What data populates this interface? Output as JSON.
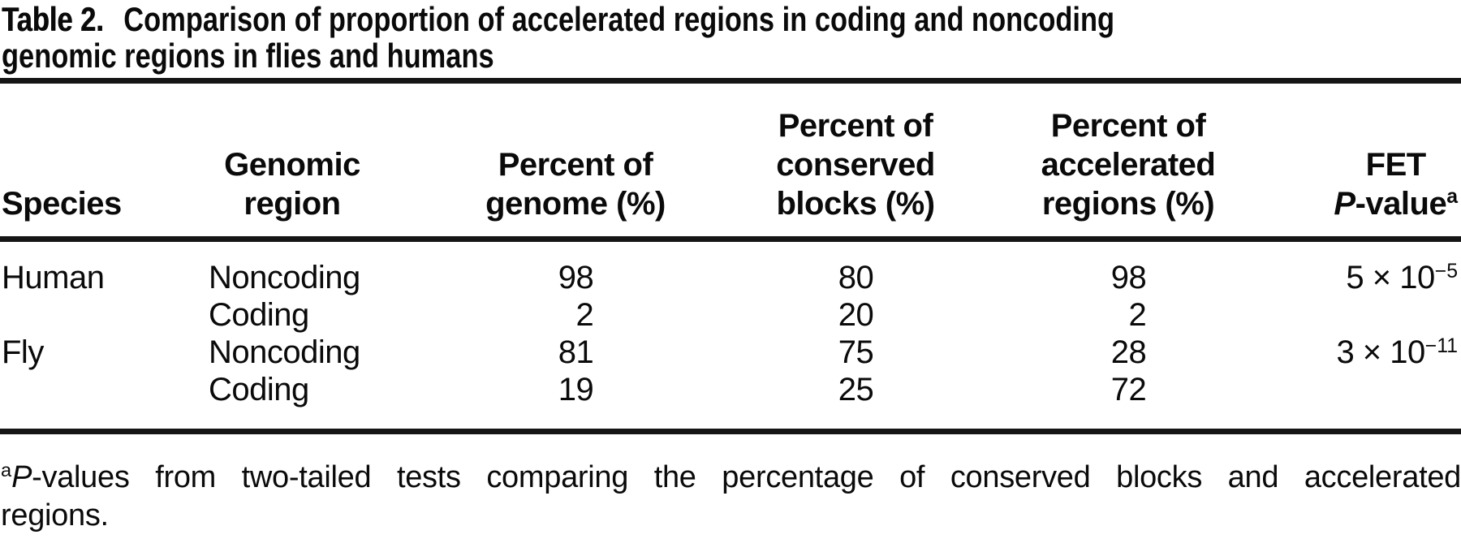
{
  "title": {
    "label": "Table 2.",
    "line1": "Comparison of proportion of accelerated regions in coding and noncoding",
    "line2": "genomic regions in flies and humans"
  },
  "headers": {
    "species": "Species",
    "genomic_region": "Genomic\nregion",
    "percent_genome": "Percent of\ngenome (%)",
    "percent_conserved": "Percent of\nconserved\nblocks (%)",
    "percent_accelerated": "Percent of\naccelerated\nregions (%)",
    "fet_line1": "FET",
    "fet_p": "P",
    "fet_rest": "-value",
    "fet_sup": "a"
  },
  "table": {
    "rows": [
      {
        "species": "Human",
        "region": "Noncoding",
        "genome": "98",
        "conserved": "80",
        "accelerated": "98",
        "fet_base": "5 × 10",
        "fet_exp": "−5"
      },
      {
        "species": "",
        "region": "Coding",
        "genome": "2",
        "conserved": "20",
        "accelerated": "2",
        "fet_base": "",
        "fet_exp": ""
      },
      {
        "species": "Fly",
        "region": "Noncoding",
        "genome": "81",
        "conserved": "75",
        "accelerated": "28",
        "fet_base": "3 × 10",
        "fet_exp": "−11"
      },
      {
        "species": "",
        "region": "Coding",
        "genome": "19",
        "conserved": "25",
        "accelerated": "72",
        "fet_base": "",
        "fet_exp": ""
      }
    ]
  },
  "footnote": {
    "sup": "a",
    "p": "P",
    "line1_rest": "-values from two-tailed tests comparing the percentage of conserved blocks and accelerated",
    "line2": "regions."
  },
  "colors": {
    "text": "#0a0a0a",
    "rule": "#151515",
    "background": "#ffffff"
  }
}
